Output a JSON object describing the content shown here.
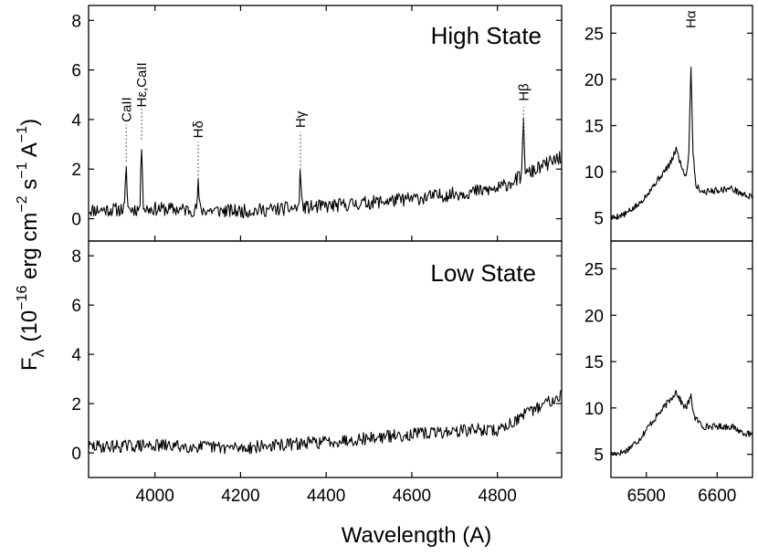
{
  "chart_data": {
    "type": "line",
    "xlabel": "Wavelength  (A)",
    "ylabel": {
      "prefix": "F",
      "sub": "λ",
      "open": "(10",
      "e1": "−16",
      "t1": " erg cm",
      "e2": "−2",
      "t2": " s",
      "e3": "−1",
      "t3": " A",
      "e4": "−1",
      "close": ")"
    },
    "panels": [
      {
        "id": "high-blue",
        "title": "High State",
        "xlim": [
          3845,
          4950
        ],
        "ylim": [
          -0.9,
          8.6
        ],
        "xticks": [
          4000,
          4200,
          4400,
          4600,
          4800
        ],
        "xtick_labels": [
          "4000",
          "4200",
          "4400",
          "4600",
          "4800"
        ],
        "yticks": [
          0,
          2,
          4,
          6,
          8
        ],
        "ytick_labels": [
          "0",
          "2",
          "4",
          "6",
          "8"
        ],
        "continuum": [
          [
            3850,
            0.35
          ],
          [
            4000,
            0.4
          ],
          [
            4200,
            0.3
          ],
          [
            4400,
            0.5
          ],
          [
            4600,
            0.8
          ],
          [
            4800,
            1.2
          ],
          [
            4950,
            2.5
          ]
        ],
        "noise": 0.28,
        "seed": 11,
        "lines": [
          {
            "name": "CaII",
            "x": 3933,
            "peak": 1.6,
            "dash": [
              2.3,
              3.8
            ],
            "label_y": 4.4
          },
          {
            "name": "Hε,CaII",
            "x": 3969,
            "peak": 2.6,
            "dash": [
              3.2,
              4.7
            ],
            "label_y": 5.4
          },
          {
            "name": "Hδ",
            "x": 4101,
            "peak": 1.0,
            "dash": [
              1.6,
              3.1
            ],
            "label_y": 3.6
          },
          {
            "name": "Hγ",
            "x": 4340,
            "peak": 1.45,
            "dash": [
              2.0,
              3.5
            ],
            "label_y": 4.0
          },
          {
            "name": "Hβ",
            "x": 4861,
            "peak": 2.35,
            "dash": [
              3.0,
              4.5
            ],
            "label_y": 5.1
          }
        ]
      },
      {
        "id": "low-blue",
        "title": "Low State",
        "xlim": [
          3845,
          4950
        ],
        "ylim": [
          -1.0,
          8.6
        ],
        "xticks": [
          4000,
          4200,
          4400,
          4600,
          4800
        ],
        "xtick_labels": [
          "4000",
          "4200",
          "4400",
          "4600",
          "4800"
        ],
        "yticks": [
          0,
          2,
          4,
          6,
          8
        ],
        "ytick_labels": [
          "0",
          "2",
          "4",
          "6",
          "8"
        ],
        "continuum": [
          [
            3850,
            0.25
          ],
          [
            4000,
            0.3
          ],
          [
            4200,
            0.2
          ],
          [
            4400,
            0.45
          ],
          [
            4600,
            0.75
          ],
          [
            4750,
            0.95
          ],
          [
            4800,
            0.9
          ],
          [
            4950,
            2.4
          ]
        ],
        "noise": 0.26,
        "seed": 29,
        "lines": []
      },
      {
        "id": "high-red",
        "xlim": [
          6450,
          6650
        ],
        "ylim": [
          2.5,
          28
        ],
        "yticks": [
          5,
          10,
          15,
          20,
          25
        ],
        "ytick_labels": [
          "5",
          "10",
          "15",
          "20",
          "25"
        ],
        "points": [
          [
            6450,
            5.0
          ],
          [
            6470,
            5.4
          ],
          [
            6490,
            6.5
          ],
          [
            6505,
            8.0
          ],
          [
            6520,
            9.5
          ],
          [
            6535,
            11.0
          ],
          [
            6542,
            12.5
          ],
          [
            6550,
            10.5
          ],
          [
            6556,
            9.5
          ],
          [
            6560,
            12.0
          ],
          [
            6563,
            21.5
          ],
          [
            6566,
            12.0
          ],
          [
            6570,
            8.5
          ],
          [
            6580,
            7.8
          ],
          [
            6600,
            8.0
          ],
          [
            6620,
            8.2
          ],
          [
            6635,
            7.6
          ],
          [
            6650,
            7.2
          ]
        ],
        "noise": 0.35,
        "seed": 5,
        "lines": [
          {
            "name": "Hα",
            "x": 6563,
            "label_y": 26.5
          }
        ]
      },
      {
        "id": "low-red",
        "xlim": [
          6450,
          6650
        ],
        "ylim": [
          2.5,
          28
        ],
        "xticks": [
          6500,
          6600
        ],
        "xtick_labels": [
          "6500",
          "6600"
        ],
        "yticks": [
          5,
          10,
          15,
          20,
          25
        ],
        "ytick_labels": [
          "5",
          "10",
          "15",
          "20",
          "25"
        ],
        "points": [
          [
            6450,
            5.0
          ],
          [
            6470,
            5.3
          ],
          [
            6490,
            6.6
          ],
          [
            6505,
            8.2
          ],
          [
            6520,
            9.6
          ],
          [
            6535,
            11.0
          ],
          [
            6542,
            11.8
          ],
          [
            6550,
            10.5
          ],
          [
            6556,
            10.0
          ],
          [
            6563,
            11.2
          ],
          [
            6568,
            9.0
          ],
          [
            6580,
            8.0
          ],
          [
            6600,
            8.0
          ],
          [
            6620,
            8.0
          ],
          [
            6635,
            7.4
          ],
          [
            6650,
            7.0
          ]
        ],
        "noise": 0.35,
        "seed": 17,
        "lines": []
      }
    ]
  }
}
